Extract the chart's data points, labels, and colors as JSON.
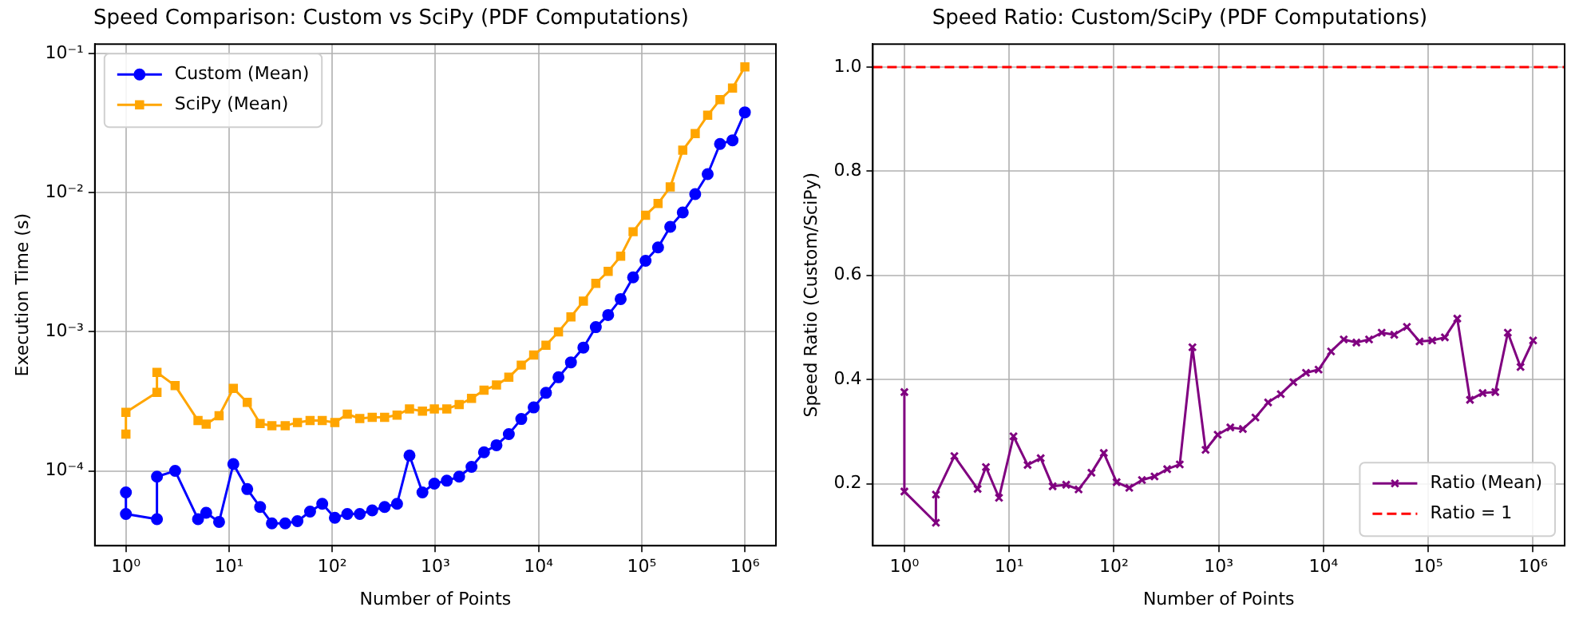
{
  "chart_data": [
    {
      "type": "line",
      "title": "Speed Comparison: Custom vs SciPy (PDF Computations)",
      "xlabel": "Number of Points",
      "ylabel": "Execution Time (s)",
      "x": [
        1,
        1,
        2,
        2,
        3,
        5,
        6,
        8,
        11,
        15,
        20,
        26,
        35,
        46,
        61,
        80,
        106,
        140,
        185,
        244,
        322,
        425,
        561,
        749,
        977,
        1290,
        1700,
        2240,
        2960,
        3910,
        5150,
        6800,
        8970,
        11800,
        15600,
        20600,
        27200,
        35900,
        47300,
        62500,
        82500,
        109000,
        144000,
        189000,
        250000,
        330000,
        436000,
        574000,
        759000,
        1000000
      ],
      "series": [
        {
          "name": "Custom (Mean)",
          "color": "#0000ff",
          "marker": "circle",
          "values": [
            7e-05,
            4.9e-05,
            4.5e-05,
            9.1e-05,
            0.0001,
            4.5e-05,
            5e-05,
            4.3e-05,
            0.000112,
            7.4e-05,
            5.5e-05,
            4.2e-05,
            4.2e-05,
            4.35e-05,
            5.1e-05,
            5.8e-05,
            4.6e-05,
            4.9e-05,
            4.9e-05,
            5.2e-05,
            5.5e-05,
            5.8e-05,
            0.000129,
            7e-05,
            8.1e-05,
            8.5e-05,
            9.1e-05,
            0.000107,
            0.000136,
            0.000153,
            0.000184,
            0.000236,
            0.000286,
            0.000364,
            0.000471,
            0.000603,
            0.00077,
            0.00108,
            0.00132,
            0.00172,
            0.00246,
            0.00324,
            0.00404,
            0.00568,
            0.00721,
            0.00977,
            0.0136,
            0.0224,
            0.0238,
            0.0378
          ]
        },
        {
          "name": "SciPy (Mean)",
          "color": "#ffa500",
          "marker": "square",
          "values": [
            0.000184,
            0.000264,
            0.000367,
            0.00051,
            0.00041,
            0.00023,
            0.000217,
            0.000249,
            0.000392,
            0.000311,
            0.000219,
            0.000211,
            0.000211,
            0.000223,
            0.00023,
            0.00023,
            0.000223,
            0.000256,
            0.000238,
            0.000243,
            0.000243,
            0.000252,
            0.000279,
            0.000269,
            0.000279,
            0.000279,
            0.0003,
            0.000332,
            0.000381,
            0.000414,
            0.000471,
            0.000576,
            0.00068,
            0.0008,
            0.001,
            0.00128,
            0.00166,
            0.00223,
            0.00272,
            0.00349,
            0.00524,
            0.00689,
            0.00836,
            0.011,
            0.0202,
            0.0266,
            0.036,
            0.0466,
            0.0565,
            0.0802
          ]
        }
      ],
      "xlim": [
        0.5,
        2000000
      ],
      "xticks": [
        {
          "value": 1,
          "label": "10⁰"
        },
        {
          "value": 10,
          "label": "10¹"
        },
        {
          "value": 100,
          "label": "10²"
        },
        {
          "value": 1000,
          "label": "10³"
        },
        {
          "value": 10000,
          "label": "10⁴"
        },
        {
          "value": 100000,
          "label": "10⁵"
        },
        {
          "value": 1000000,
          "label": "10⁶"
        }
      ],
      "ylim": [
        2.9e-05,
        0.117
      ],
      "yticks": [
        {
          "value": 0.0001,
          "label": "10⁻⁴"
        },
        {
          "value": 0.001,
          "label": "10⁻³"
        },
        {
          "value": 0.01,
          "label": "10⁻²"
        },
        {
          "value": 0.1,
          "label": "10⁻¹"
        }
      ],
      "log": "xy",
      "grid": true,
      "legend": "top left"
    },
    {
      "type": "line",
      "title": "Speed Ratio: Custom/SciPy (PDF Computations)",
      "xlabel": "Number of Points",
      "ylabel": "Speed Ratio (Custom/SciPy)",
      "x": [
        1,
        1,
        2,
        2,
        3,
        5,
        6,
        8,
        11,
        15,
        20,
        26,
        35,
        46,
        61,
        80,
        106,
        140,
        185,
        244,
        322,
        425,
        561,
        749,
        977,
        1290,
        1700,
        2240,
        2960,
        3910,
        5150,
        6800,
        8970,
        11800,
        15600,
        20600,
        27200,
        35900,
        47300,
        62500,
        82500,
        109000,
        144000,
        189000,
        250000,
        330000,
        436000,
        574000,
        759000,
        1000000
      ],
      "series": [
        {
          "name": "Ratio (Mean)",
          "color": "#800080",
          "marker": "cross",
          "values": [
            0.376,
            0.185,
            0.125,
            0.179,
            0.253,
            0.19,
            0.232,
            0.173,
            0.291,
            0.236,
            0.249,
            0.195,
            0.198,
            0.189,
            0.221,
            0.259,
            0.203,
            0.192,
            0.207,
            0.214,
            0.228,
            0.237,
            0.462,
            0.265,
            0.294,
            0.308,
            0.305,
            0.327,
            0.356,
            0.372,
            0.395,
            0.413,
            0.419,
            0.454,
            0.477,
            0.471,
            0.477,
            0.49,
            0.486,
            0.501,
            0.473,
            0.475,
            0.481,
            0.517,
            0.361,
            0.374,
            0.376,
            0.49,
            0.424,
            0.475
          ]
        }
      ],
      "ref_lines": [
        {
          "axis": "y",
          "value": 1,
          "label": "Ratio = 1",
          "color": "#ff0000",
          "line_style": "dashed"
        }
      ],
      "xlim": [
        0.5,
        2000000
      ],
      "xticks": [
        {
          "value": 1,
          "label": "10⁰"
        },
        {
          "value": 10,
          "label": "10¹"
        },
        {
          "value": 100,
          "label": "10²"
        },
        {
          "value": 1000,
          "label": "10³"
        },
        {
          "value": 10000,
          "label": "10⁴"
        },
        {
          "value": 100000,
          "label": "10⁵"
        },
        {
          "value": 1000000,
          "label": "10⁶"
        }
      ],
      "ylim": [
        0.081,
        1.044
      ],
      "yticks": [
        0.2,
        0.4,
        0.6,
        0.8,
        {
          "value": 1,
          "label": "1.0"
        }
      ],
      "log": "x",
      "grid": true,
      "legend": "bottom right"
    }
  ]
}
